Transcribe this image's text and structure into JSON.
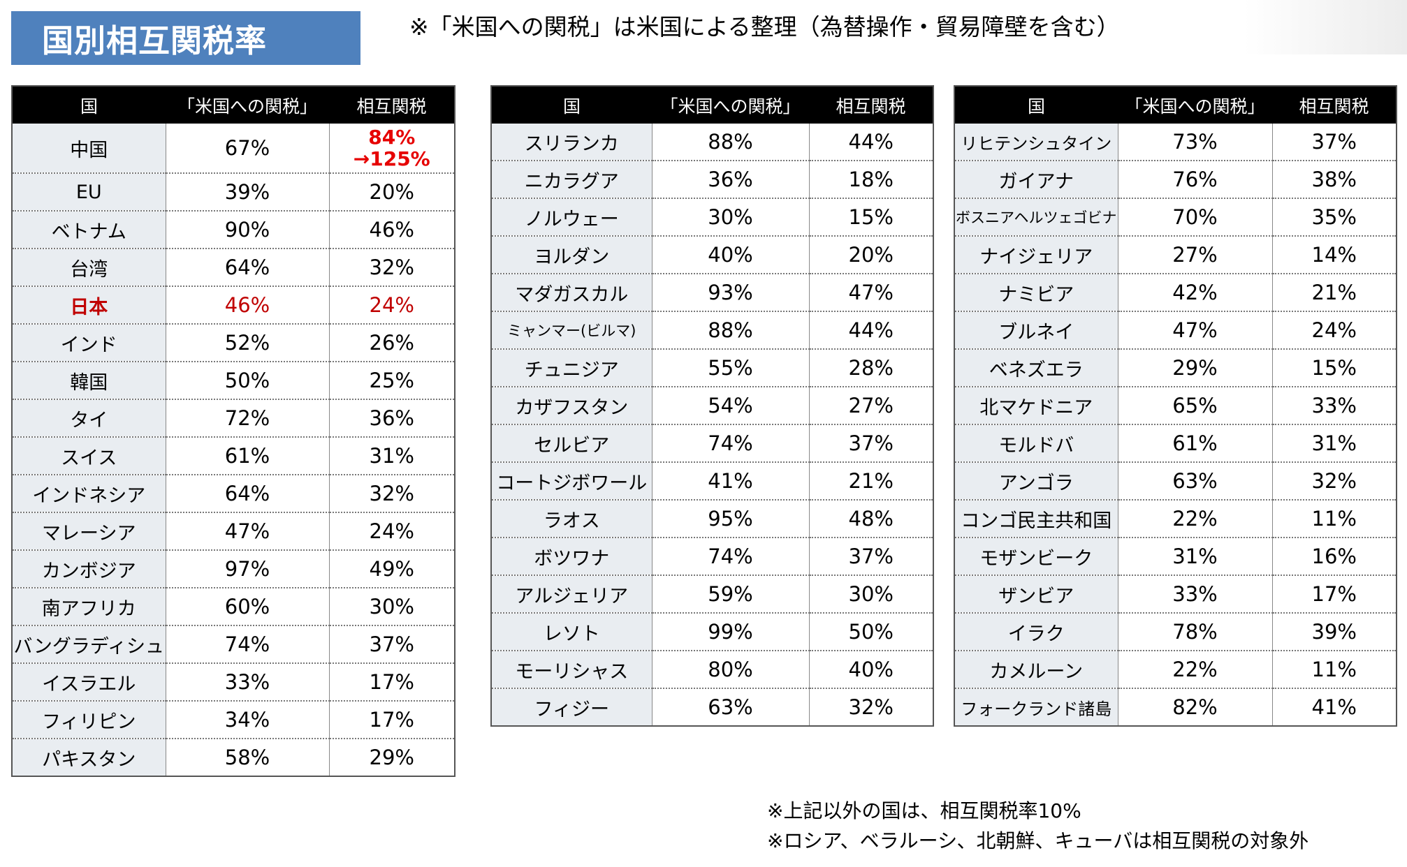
{
  "title": "国別相互関税率",
  "subtitle": "※「米国への関税」は米国による整理（為替操作・貿易障壁を含む）",
  "headers": {
    "country": "国",
    "us_tariff": "「米国への関税」",
    "reciprocal": "相互関税"
  },
  "table1": [
    {
      "country": "中国",
      "us": "67%",
      "rate_line1": "84%",
      "rate_line2": "→125%"
    },
    {
      "country": "EU",
      "us": "39%",
      "rate": "20%"
    },
    {
      "country": "ベトナム",
      "us": "90%",
      "rate": "46%"
    },
    {
      "country": "台湾",
      "us": "64%",
      "rate": "32%"
    },
    {
      "country": "日本",
      "us": "46%",
      "rate": "24%"
    },
    {
      "country": "インド",
      "us": "52%",
      "rate": "26%"
    },
    {
      "country": "韓国",
      "us": "50%",
      "rate": "25%"
    },
    {
      "country": "タイ",
      "us": "72%",
      "rate": "36%"
    },
    {
      "country": "スイス",
      "us": "61%",
      "rate": "31%"
    },
    {
      "country": "インドネシア",
      "us": "64%",
      "rate": "32%"
    },
    {
      "country": "マレーシア",
      "us": "47%",
      "rate": "24%"
    },
    {
      "country": "カンボジア",
      "us": "97%",
      "rate": "49%"
    },
    {
      "country": "南アフリカ",
      "us": "60%",
      "rate": "30%"
    },
    {
      "country": "バングラディシュ",
      "us": "74%",
      "rate": "37%"
    },
    {
      "country": "イスラエル",
      "us": "33%",
      "rate": "17%"
    },
    {
      "country": "フィリピン",
      "us": "34%",
      "rate": "17%"
    },
    {
      "country": "パキスタン",
      "us": "58%",
      "rate": "29%"
    }
  ],
  "table2": [
    {
      "country": "スリランカ",
      "us": "88%",
      "rate": "44%"
    },
    {
      "country": "ニカラグア",
      "us": "36%",
      "rate": "18%"
    },
    {
      "country": "ノルウェー",
      "us": "30%",
      "rate": "15%"
    },
    {
      "country": "ヨルダン",
      "us": "40%",
      "rate": "20%"
    },
    {
      "country": "マダガスカル",
      "us": "93%",
      "rate": "47%"
    },
    {
      "country": "ミャンマー(ビルマ)",
      "us": "88%",
      "rate": "44%"
    },
    {
      "country": "チュニジア",
      "us": "55%",
      "rate": "28%"
    },
    {
      "country": "カザフスタン",
      "us": "54%",
      "rate": "27%"
    },
    {
      "country": "セルビア",
      "us": "74%",
      "rate": "37%"
    },
    {
      "country": "コートジボワール",
      "us": "41%",
      "rate": "21%"
    },
    {
      "country": "ラオス",
      "us": "95%",
      "rate": "48%"
    },
    {
      "country": "ボツワナ",
      "us": "74%",
      "rate": "37%"
    },
    {
      "country": "アルジェリア",
      "us": "59%",
      "rate": "30%"
    },
    {
      "country": "レソト",
      "us": "99%",
      "rate": "50%"
    },
    {
      "country": "モーリシャス",
      "us": "80%",
      "rate": "40%"
    },
    {
      "country": "フィジー",
      "us": "63%",
      "rate": "32%"
    }
  ],
  "table3": [
    {
      "country": "リヒテンシュタイン",
      "us": "73%",
      "rate": "37%"
    },
    {
      "country": "ガイアナ",
      "us": "76%",
      "rate": "38%"
    },
    {
      "country": "ボスニアヘルツェゴビナ",
      "us": "70%",
      "rate": "35%"
    },
    {
      "country": "ナイジェリア",
      "us": "27%",
      "rate": "14%"
    },
    {
      "country": "ナミビア",
      "us": "42%",
      "rate": "21%"
    },
    {
      "country": "ブルネイ",
      "us": "47%",
      "rate": "24%"
    },
    {
      "country": "ベネズエラ",
      "us": "29%",
      "rate": "15%"
    },
    {
      "country": "北マケドニア",
      "us": "65%",
      "rate": "33%"
    },
    {
      "country": "モルドバ",
      "us": "61%",
      "rate": "31%"
    },
    {
      "country": "アンゴラ",
      "us": "63%",
      "rate": "32%"
    },
    {
      "country": "コンゴ民主共和国",
      "us": "22%",
      "rate": "11%"
    },
    {
      "country": "モザンビーク",
      "us": "31%",
      "rate": "16%"
    },
    {
      "country": "ザンビア",
      "us": "33%",
      "rate": "17%"
    },
    {
      "country": "イラク",
      "us": "78%",
      "rate": "39%"
    },
    {
      "country": "カメルーン",
      "us": "22%",
      "rate": "11%"
    },
    {
      "country": "フォークランド諸島",
      "us": "82%",
      "rate": "41%"
    }
  ],
  "footnotes": [
    "※上記以外の国は、相互関税率10%",
    "※ロシア、ベラルーシ、北朝鮮、キューバは相互関税の対象外"
  ],
  "colors": {
    "title_bg": "#4f81bd",
    "header_bg": "#000000",
    "country_bg": "#e9edf1",
    "highlight": "#c00000",
    "china_rate": "#e60000"
  }
}
